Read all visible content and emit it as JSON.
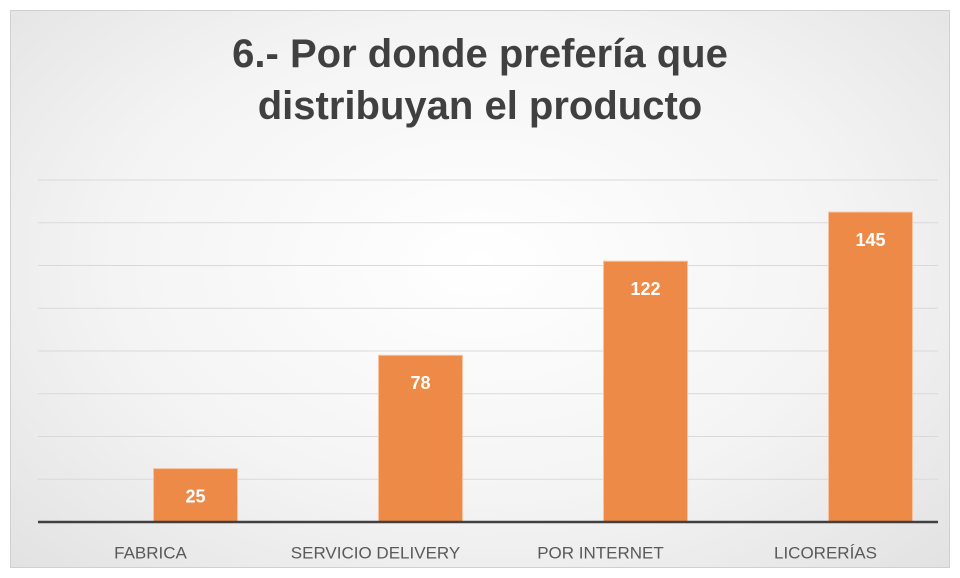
{
  "chart_data": {
    "type": "bar",
    "title": "6.- Por donde prefería que distribuyan el producto",
    "categories": [
      "FABRICA",
      "SERVICIO DELIVERY",
      "POR INTERNET",
      "LICORERÍAS"
    ],
    "values": [
      25,
      78,
      122,
      145
    ],
    "color": "#ee8a48",
    "ylim": [
      0,
      160
    ],
    "yticks": [
      0,
      20,
      40,
      60,
      80,
      100,
      120,
      140,
      160
    ],
    "grid": true
  }
}
